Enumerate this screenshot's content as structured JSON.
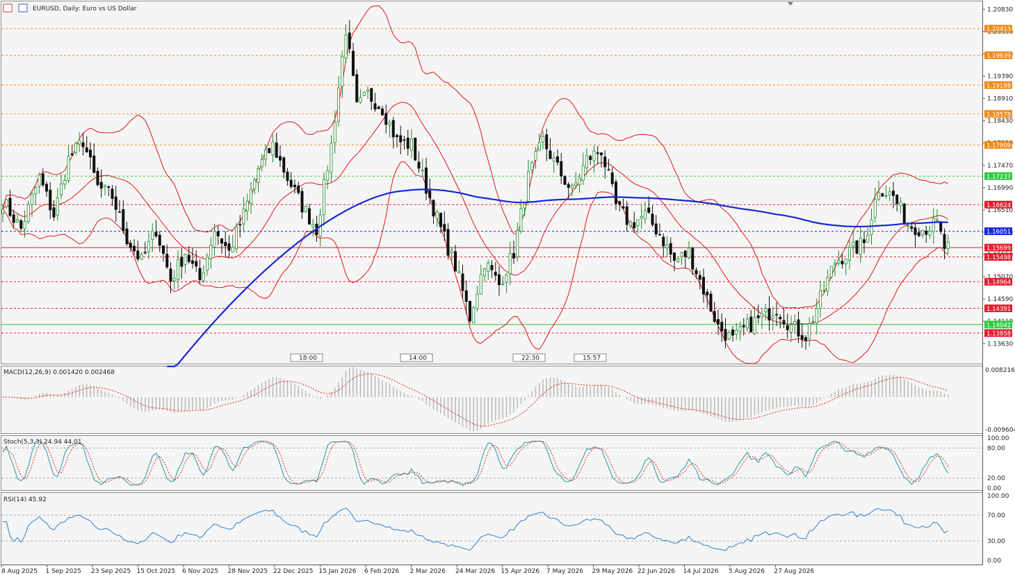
{
  "header": {
    "title": "EURUSD, Daily:  Euro vs US Dollar"
  },
  "chart_data": {
    "type": "candlestick",
    "symbol": "EURUSD",
    "timeframe": "Daily",
    "price_axis": {
      "min": 1.132,
      "max": 1.21,
      "ticks": [
        "1.20830",
        "1.20350",
        "1.19870",
        "1.19390",
        "1.18910",
        "1.18430",
        "1.17950",
        "1.17470",
        "1.16990",
        "1.16510",
        "1.16030",
        "1.15550",
        "1.15070",
        "1.14590",
        "1.14110",
        "1.13630"
      ]
    },
    "x_labels": [
      "8 Aug 2025",
      "1 Sep 2025",
      "23 Sep 2025",
      "15 Oct 2025",
      "6 Nov 2025",
      "28 Nov 2025",
      "22 Dec 2025",
      "15 Jan 2026",
      "6 Feb 2026",
      "2 Mar 2026",
      "24 Mar 2026",
      "15 Apr 2026",
      "7 May 2026",
      "29 May 2026",
      "22 Jun 2026",
      "14 Jul 2026",
      "5 Aug 2026",
      "27 Aug 2026"
    ],
    "anchors": [
      [
        0,
        1.167
      ],
      [
        5,
        1.161
      ],
      [
        10,
        1.172
      ],
      [
        14,
        1.164
      ],
      [
        18,
        1.176
      ],
      [
        22,
        1.18
      ],
      [
        26,
        1.17
      ],
      [
        30,
        1.168
      ],
      [
        34,
        1.159
      ],
      [
        38,
        1.154
      ],
      [
        42,
        1.161
      ],
      [
        46,
        1.15
      ],
      [
        50,
        1.156
      ],
      [
        54,
        1.15
      ],
      [
        58,
        1.161
      ],
      [
        62,
        1.156
      ],
      [
        66,
        1.164
      ],
      [
        70,
        1.174
      ],
      [
        74,
        1.179
      ],
      [
        78,
        1.172
      ],
      [
        82,
        1.166
      ],
      [
        86,
        1.161
      ],
      [
        90,
        1.179
      ],
      [
        94,
        1.204
      ],
      [
        97,
        1.187
      ],
      [
        100,
        1.19
      ],
      [
        104,
        1.187
      ],
      [
        108,
        1.18
      ],
      [
        112,
        1.179
      ],
      [
        116,
        1.17
      ],
      [
        120,
        1.161
      ],
      [
        124,
        1.153
      ],
      [
        128,
        1.142
      ],
      [
        132,
        1.154
      ],
      [
        136,
        1.149
      ],
      [
        140,
        1.156
      ],
      [
        144,
        1.172
      ],
      [
        148,
        1.18
      ],
      [
        152,
        1.174
      ],
      [
        156,
        1.169
      ],
      [
        160,
        1.176
      ],
      [
        164,
        1.178
      ],
      [
        168,
        1.166
      ],
      [
        172,
        1.162
      ],
      [
        176,
        1.164
      ],
      [
        180,
        1.16
      ],
      [
        184,
        1.154
      ],
      [
        188,
        1.156
      ],
      [
        192,
        1.148
      ],
      [
        196,
        1.14
      ],
      [
        200,
        1.137
      ],
      [
        204,
        1.14
      ],
      [
        208,
        1.142
      ],
      [
        212,
        1.144
      ],
      [
        216,
        1.14
      ],
      [
        220,
        1.138
      ],
      [
        224,
        1.146
      ],
      [
        228,
        1.154
      ],
      [
        232,
        1.156
      ],
      [
        236,
        1.158
      ],
      [
        240,
        1.17
      ],
      [
        244,
        1.168
      ],
      [
        248,
        1.162
      ],
      [
        252,
        1.161
      ],
      [
        256,
        1.162
      ],
      [
        258,
        1.157
      ]
    ],
    "levels": [
      {
        "price": 1.20413,
        "label": "1.20413",
        "color": "#f08a1c",
        "style": "dashed"
      },
      {
        "price": 1.19839,
        "label": "1.19839",
        "color": "#f08a1c",
        "style": "dashed"
      },
      {
        "price": 1.19198,
        "label": "1.19198",
        "color": "#f08a1c",
        "style": "dashed"
      },
      {
        "price": 1.18578,
        "label": "1.18578",
        "color": "#f08a1c",
        "style": "dashed"
      },
      {
        "price": 1.17909,
        "label": "1.17909",
        "color": "#f08a1c",
        "style": "dashed"
      },
      {
        "price": 1.17237,
        "label": "1.17237",
        "color": "#2ecc40",
        "style": "dashed"
      },
      {
        "price": 1.16624,
        "label": "1.16624",
        "color": "#e0202f",
        "style": "dashed"
      },
      {
        "price": 1.16051,
        "label": "1.16051",
        "color": "#1a2ad8",
        "style": "dashed"
      },
      {
        "price": 1.15699,
        "label": "1.15699",
        "color": "#e0202f",
        "style": "solid"
      },
      {
        "price": 1.15498,
        "label": "1.15498",
        "color": "#e0202f",
        "style": "dashed"
      },
      {
        "price": 1.14964,
        "label": "1.14964",
        "color": "#e0202f",
        "style": "dashed"
      },
      {
        "price": 1.14391,
        "label": "1.14391",
        "color": "#e0202f",
        "style": "dashed"
      },
      {
        "price": 1.14042,
        "label": "1.14042",
        "color": "#2ecc40",
        "style": "solid"
      },
      {
        "price": 1.13858,
        "label": "1.13858",
        "color": "#e0202f",
        "style": "dashed"
      }
    ],
    "session_markers": [
      "18:00",
      "14:00",
      "22:30",
      "15:57"
    ],
    "ma_color": "#1428d6",
    "bands_color": "#e01515",
    "candle_up": "#1b8a2a",
    "candle_down": "#111111"
  },
  "macd": {
    "label": "MACD(12,26,9) 0.001420 0.002468",
    "max_label": "0.008216",
    "min_label": "-0.009604",
    "max": 0.008216,
    "min": -0.009604
  },
  "stoch": {
    "label": "Stoch(5,3,3) 24.94 44.01",
    "ticks": [
      "100.00",
      "80.00",
      "20.00",
      "0.00"
    ]
  },
  "rsi": {
    "label": "RSI(14) 45.92",
    "ticks": [
      "100.00",
      "70.00",
      "30.00",
      "0.00"
    ]
  }
}
